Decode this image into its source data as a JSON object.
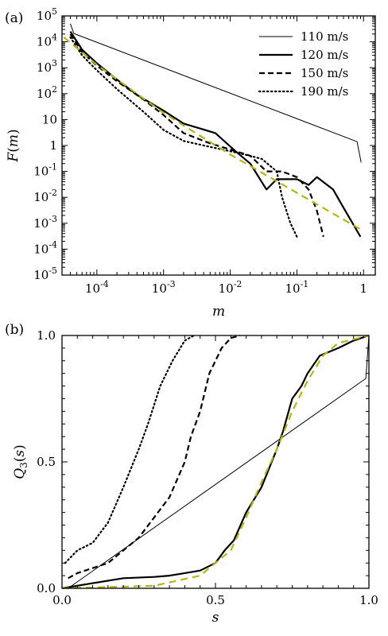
{
  "chart_data": [
    {
      "panel_label": "(a)",
      "type": "line",
      "xlabel": "m",
      "ylabel": "F(m)",
      "xscale": "log",
      "yscale": "log",
      "xlim": [
        3e-05,
        1.5
      ],
      "ylim": [
        1e-05,
        100000.0
      ],
      "xticks": [
        {
          "value": 0.0001,
          "base": "10",
          "exp": "-4"
        },
        {
          "value": 0.001,
          "base": "10",
          "exp": "-3"
        },
        {
          "value": 0.01,
          "base": "10",
          "exp": "-2"
        },
        {
          "value": 0.1,
          "base": "10",
          "exp": "-1"
        },
        {
          "value": 1,
          "base": "1",
          "exp": ""
        }
      ],
      "yticks": [
        {
          "value": 100000.0,
          "base": "10",
          "exp": "5"
        },
        {
          "value": 10000.0,
          "base": "10",
          "exp": "4"
        },
        {
          "value": 1000.0,
          "base": "10",
          "exp": "3"
        },
        {
          "value": 100.0,
          "base": "10",
          "exp": "2"
        },
        {
          "value": 10,
          "base": "10",
          "exp": ""
        },
        {
          "value": 1,
          "base": "1",
          "exp": ""
        },
        {
          "value": 0.1,
          "base": "10",
          "exp": "-1"
        },
        {
          "value": 0.01,
          "base": "10",
          "exp": "-2"
        },
        {
          "value": 0.001,
          "base": "10",
          "exp": "-3"
        },
        {
          "value": 0.0001,
          "base": "10",
          "exp": "-4"
        },
        {
          "value": 1e-05,
          "base": "10",
          "exp": "-5"
        }
      ],
      "legend": {
        "position": "top-right"
      },
      "series": [
        {
          "name": "110 m/s",
          "style": "thin",
          "color": "#000000",
          "points": [
            [
              4e-05,
              50000.0
            ],
            [
              4.5e-05,
              21000.0
            ],
            [
              0.8,
              1.4
            ],
            [
              0.92,
              0.22
            ]
          ]
        },
        {
          "name": "120 m/s",
          "style": "solid",
          "color": "#000000",
          "points": [
            [
              4e-05,
              25000.0
            ],
            [
              6e-05,
              5000.0
            ],
            [
              0.0001,
              1500.0
            ],
            [
              0.0002,
              350
            ],
            [
              0.0004,
              90
            ],
            [
              0.001,
              22
            ],
            [
              0.002,
              7
            ],
            [
              0.006,
              3
            ],
            [
              0.012,
              0.6
            ],
            [
              0.02,
              0.2
            ],
            [
              0.035,
              0.02
            ],
            [
              0.05,
              0.05
            ],
            [
              0.1,
              0.05
            ],
            [
              0.15,
              0.03
            ],
            [
              0.2,
              0.06
            ],
            [
              0.35,
              0.02
            ],
            [
              0.5,
              0.004
            ],
            [
              0.9,
              0.0003
            ]
          ]
        },
        {
          "name": "150 m/s",
          "style": "dashed",
          "color": "#000000",
          "points": [
            [
              4e-05,
              20000.0
            ],
            [
              6e-05,
              4000.0
            ],
            [
              0.0001,
              1200.0
            ],
            [
              0.0002,
              300
            ],
            [
              0.0005,
              60
            ],
            [
              0.001,
              15
            ],
            [
              0.002,
              3
            ],
            [
              0.005,
              1.2
            ],
            [
              0.01,
              0.7
            ],
            [
              0.02,
              0.4
            ],
            [
              0.035,
              0.1
            ],
            [
              0.06,
              0.1
            ],
            [
              0.1,
              0.06
            ],
            [
              0.15,
              0.02
            ],
            [
              0.2,
              0.003
            ],
            [
              0.25,
              0.0003
            ]
          ]
        },
        {
          "name": "190 m/s",
          "style": "dotted",
          "color": "#000000",
          "points": [
            [
              4e-05,
              15000.0
            ],
            [
              6e-05,
              3000.0
            ],
            [
              0.0001,
              800
            ],
            [
              0.0002,
              150
            ],
            [
              0.0005,
              20
            ],
            [
              0.001,
              4
            ],
            [
              0.002,
              1.5
            ],
            [
              0.004,
              1
            ],
            [
              0.01,
              0.6
            ],
            [
              0.02,
              0.4
            ],
            [
              0.03,
              0.3
            ],
            [
              0.05,
              0.1
            ],
            [
              0.06,
              0.01
            ],
            [
              0.08,
              0.001
            ],
            [
              0.1,
              0.0003
            ]
          ]
        },
        {
          "name": "",
          "style": "fit",
          "color": "#b5b51a",
          "points": [
            [
              3.2e-05,
              15000.0
            ],
            [
              0.0001,
              1300.0
            ],
            [
              0.001,
              18
            ],
            [
              0.01,
              0.45
            ],
            [
              0.1,
              0.015
            ],
            [
              1,
              0.0005
            ]
          ]
        }
      ]
    },
    {
      "panel_label": "(b)",
      "type": "line",
      "xlabel": "s",
      "ylabel": "Q3(s)",
      "xscale": "linear",
      "yscale": "linear",
      "xlim": [
        0,
        1
      ],
      "ylim": [
        0,
        1
      ],
      "xticks": [
        {
          "value": 0,
          "label": "0.0"
        },
        {
          "value": 0.5,
          "label": "0.5"
        },
        {
          "value": 1,
          "label": "1.0"
        }
      ],
      "yticks": [
        {
          "value": 0,
          "label": "0.0"
        },
        {
          "value": 0.5,
          "label": "0.5"
        },
        {
          "value": 1,
          "label": "1.0"
        }
      ],
      "series": [
        {
          "name": "110 m/s",
          "style": "thin",
          "color": "#000000",
          "points": [
            [
              0.02,
              0.0
            ],
            [
              0.99,
              0.83
            ],
            [
              1.0,
              1.0
            ]
          ]
        },
        {
          "name": "120 m/s",
          "style": "solid",
          "color": "#000000",
          "points": [
            [
              0.0,
              0.0
            ],
            [
              0.1,
              0.02
            ],
            [
              0.2,
              0.04
            ],
            [
              0.3,
              0.045
            ],
            [
              0.35,
              0.05
            ],
            [
              0.4,
              0.06
            ],
            [
              0.45,
              0.07
            ],
            [
              0.5,
              0.1
            ],
            [
              0.53,
              0.15
            ],
            [
              0.56,
              0.19
            ],
            [
              0.6,
              0.3
            ],
            [
              0.65,
              0.4
            ],
            [
              0.7,
              0.55
            ],
            [
              0.72,
              0.62
            ],
            [
              0.75,
              0.75
            ],
            [
              0.78,
              0.8
            ],
            [
              0.8,
              0.85
            ],
            [
              0.84,
              0.92
            ],
            [
              0.9,
              0.95
            ],
            [
              0.95,
              0.98
            ],
            [
              1.0,
              1.0
            ]
          ]
        },
        {
          "name": "150 m/s",
          "style": "dashed",
          "color": "#000000",
          "points": [
            [
              0.02,
              0.04
            ],
            [
              0.05,
              0.06
            ],
            [
              0.1,
              0.08
            ],
            [
              0.15,
              0.1
            ],
            [
              0.2,
              0.15
            ],
            [
              0.25,
              0.2
            ],
            [
              0.3,
              0.28
            ],
            [
              0.35,
              0.36
            ],
            [
              0.4,
              0.5
            ],
            [
              0.42,
              0.6
            ],
            [
              0.45,
              0.7
            ],
            [
              0.48,
              0.85
            ],
            [
              0.52,
              0.95
            ],
            [
              0.55,
              0.99
            ],
            [
              0.58,
              1.0
            ]
          ]
        },
        {
          "name": "190 m/s",
          "style": "dotted",
          "color": "#000000",
          "points": [
            [
              0.01,
              0.1
            ],
            [
              0.05,
              0.15
            ],
            [
              0.1,
              0.18
            ],
            [
              0.15,
              0.26
            ],
            [
              0.2,
              0.4
            ],
            [
              0.25,
              0.55
            ],
            [
              0.28,
              0.65
            ],
            [
              0.32,
              0.8
            ],
            [
              0.36,
              0.9
            ],
            [
              0.4,
              0.98
            ],
            [
              0.43,
              1.0
            ]
          ]
        },
        {
          "name": "",
          "style": "fit",
          "color": "#b5b51a",
          "points": [
            [
              0.0,
              0.0
            ],
            [
              0.3,
              0.01
            ],
            [
              0.45,
              0.05
            ],
            [
              0.55,
              0.15
            ],
            [
              0.6,
              0.28
            ],
            [
              0.65,
              0.42
            ],
            [
              0.7,
              0.55
            ],
            [
              0.75,
              0.7
            ],
            [
              0.8,
              0.82
            ],
            [
              0.85,
              0.92
            ],
            [
              0.9,
              0.97
            ],
            [
              1.0,
              1.0
            ]
          ]
        }
      ]
    }
  ]
}
